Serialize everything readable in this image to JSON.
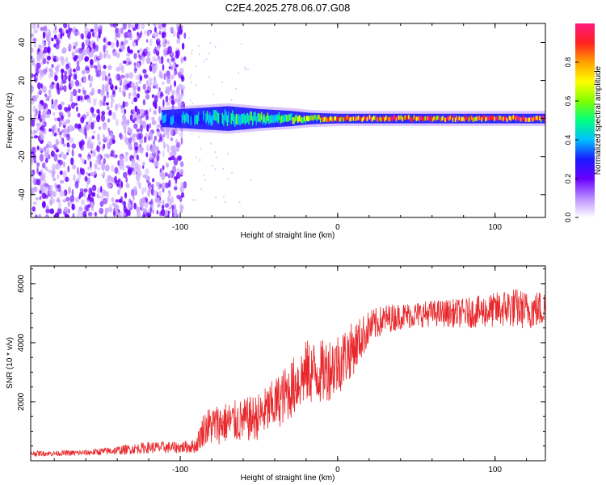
{
  "title": "C2E4.2025.278.06.07.G08",
  "colors": {
    "snr_line": "#e8282b",
    "scatter_main": "#6a00ff",
    "scatter_light": "#c9a6ff",
    "band_mid": "#00d8ff",
    "band_high": "#ff2a2a",
    "colorbar": [
      "#ffffff",
      "#b98cff",
      "#6a00ff",
      "#1a1aff",
      "#00c0ff",
      "#00ff80",
      "#80ff00",
      "#ffff00",
      "#ffa000",
      "#ff2020",
      "#ff1a80"
    ]
  },
  "chart_data": [
    {
      "type": "heatmap",
      "xlabel": "Height of straight line (km)",
      "ylabel": "Frequency (Hz)",
      "xlim": [
        -195,
        132
      ],
      "ylim": [
        -52,
        50
      ],
      "xticks": [
        {
          "value": -100,
          "label": "-100"
        },
        {
          "value": 0,
          "label": "0"
        },
        {
          "value": 100,
          "label": "100"
        }
      ],
      "yticks": [
        {
          "value": -40,
          "label": "-40"
        },
        {
          "value": -20,
          "label": "-20"
        },
        {
          "value": 0,
          "label": "0"
        },
        {
          "value": 20,
          "label": "20"
        },
        {
          "value": 40,
          "label": "40"
        }
      ],
      "colorbar": {
        "label": "Normalized spectral amplitude",
        "range": [
          0,
          1
        ],
        "ticks": [
          {
            "value": 0.0,
            "label": "0.0"
          },
          {
            "value": 0.2,
            "label": "0.2"
          },
          {
            "value": 0.4,
            "label": "0.4"
          },
          {
            "value": 0.6,
            "label": "0.6"
          },
          {
            "value": 0.8,
            "label": "0.8"
          }
        ]
      },
      "noise_region": {
        "x_range": [
          -195,
          -97
        ],
        "y_range": [
          -52,
          50
        ]
      },
      "signal_band": {
        "x_range": [
          -112,
          132
        ],
        "center_hz": 0,
        "points": [
          {
            "x": -110,
            "halfwidth": 4.5,
            "amp": 0.35
          },
          {
            "x": -90,
            "halfwidth": 5.5,
            "amp": 0.4
          },
          {
            "x": -70,
            "halfwidth": 6.5,
            "amp": 0.45
          },
          {
            "x": -50,
            "halfwidth": 5,
            "amp": 0.5
          },
          {
            "x": -30,
            "halfwidth": 4,
            "amp": 0.55
          },
          {
            "x": -18,
            "halfwidth": 3,
            "amp": 0.65
          },
          {
            "x": 0,
            "halfwidth": 2.5,
            "amp": 0.8
          },
          {
            "x": 30,
            "halfwidth": 2.5,
            "amp": 0.9
          },
          {
            "x": 60,
            "halfwidth": 2.5,
            "amp": 0.85
          },
          {
            "x": 100,
            "halfwidth": 2.5,
            "amp": 0.9
          },
          {
            "x": 130,
            "halfwidth": 2.5,
            "amp": 0.9
          }
        ]
      }
    },
    {
      "type": "line",
      "xlabel": "Height of straight line (km)",
      "ylabel": "SNR (10 * v/v)",
      "xlim": [
        -195,
        132
      ],
      "ylim": [
        0,
        6600
      ],
      "xticks": [
        {
          "value": -100,
          "label": "-100"
        },
        {
          "value": 0,
          "label": "0"
        },
        {
          "value": 100,
          "label": "100"
        }
      ],
      "yticks": [
        {
          "value": 2000,
          "label": "2000"
        },
        {
          "value": 4000,
          "label": "4000"
        },
        {
          "value": 6000,
          "label": "6000"
        }
      ],
      "series": [
        {
          "x": [
            -195,
            -180,
            -160,
            -140,
            -120,
            -100,
            -90,
            -85,
            -80,
            -70,
            -60,
            -50,
            -40,
            -30,
            -20,
            -10,
            0,
            10,
            20,
            30,
            40,
            60,
            80,
            100,
            110,
            120,
            132
          ],
          "y": [
            250,
            250,
            270,
            350,
            450,
            450,
            500,
            1100,
            1200,
            1300,
            1350,
            1500,
            1900,
            2400,
            3000,
            3000,
            3300,
            3800,
            4500,
            4800,
            4900,
            5000,
            5000,
            5100,
            5200,
            5100,
            5150
          ],
          "noise": [
            90,
            90,
            100,
            150,
            200,
            200,
            250,
            600,
            700,
            700,
            750,
            800,
            900,
            1000,
            1100,
            1100,
            1100,
            900,
            600,
            500,
            450,
            450,
            500,
            600,
            700,
            650,
            650
          ]
        }
      ]
    }
  ]
}
